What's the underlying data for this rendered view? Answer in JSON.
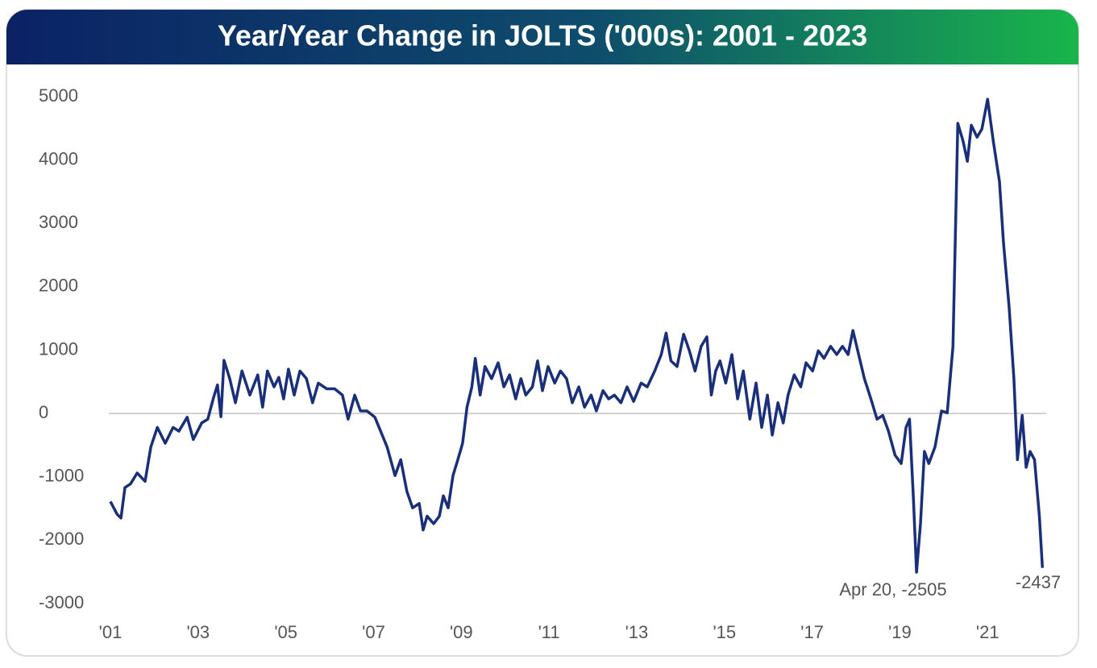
{
  "chart_data": {
    "type": "line",
    "title": "Year/Year Change in JOLTS ('000s): 2001 - 2023",
    "annotations": [
      "Apr 20, -2505",
      "-2437"
    ],
    "xlim": [
      2001,
      2022.3
    ],
    "xticks": [
      {
        "value": 2001,
        "label": "'01"
      },
      {
        "value": 2003,
        "label": "'03"
      },
      {
        "value": 2005,
        "label": "'05"
      },
      {
        "value": 2007,
        "label": "'07"
      },
      {
        "value": 2009,
        "label": "'09"
      },
      {
        "value": 2011,
        "label": "'11"
      },
      {
        "value": 2013,
        "label": "'13"
      },
      {
        "value": 2015,
        "label": "'15"
      },
      {
        "value": 2017,
        "label": "'17"
      },
      {
        "value": 2019,
        "label": "'19"
      },
      {
        "value": 2021,
        "label": "'21"
      }
    ],
    "ylim": [
      -3000,
      5000
    ],
    "yticks": [
      -3000,
      -2000,
      -1000,
      0,
      1000,
      2000,
      3000,
      4000,
      5000
    ],
    "zero_line": true,
    "series": [
      {
        "color": "#1a2f7a",
        "x": [
          2001.0,
          2001.15,
          2001.24,
          2001.33,
          2001.46,
          2001.61,
          2001.79,
          2001.92,
          2002.07,
          2002.25,
          2002.43,
          2002.56,
          2002.75,
          2002.89,
          2003.08,
          2003.22,
          2003.35,
          2003.44,
          2003.52,
          2003.59,
          2003.72,
          2003.85,
          2004.0,
          2004.18,
          2004.36,
          2004.47,
          2004.58,
          2004.73,
          2004.84,
          2004.95,
          2005.06,
          2005.19,
          2005.32,
          2005.47,
          2005.61,
          2005.74,
          2005.93,
          2006.11,
          2006.29,
          2006.42,
          2006.57,
          2006.7,
          2006.85,
          2007.03,
          2007.16,
          2007.31,
          2007.49,
          2007.62,
          2007.76,
          2007.89,
          2008.04,
          2008.13,
          2008.22,
          2008.37,
          2008.5,
          2008.59,
          2008.7,
          2008.81,
          2008.92,
          2009.03,
          2009.13,
          2009.24,
          2009.32,
          2009.43,
          2009.54,
          2009.69,
          2009.84,
          2009.97,
          2010.1,
          2010.24,
          2010.36,
          2010.47,
          2010.62,
          2010.74,
          2010.85,
          2010.98,
          2011.13,
          2011.26,
          2011.4,
          2011.53,
          2011.68,
          2011.81,
          2011.96,
          2012.08,
          2012.23,
          2012.36,
          2012.49,
          2012.64,
          2012.78,
          2012.93,
          2013.1,
          2013.24,
          2013.41,
          2013.56,
          2013.67,
          2013.78,
          2013.92,
          2014.07,
          2014.2,
          2014.33,
          2014.47,
          2014.6,
          2014.7,
          2014.8,
          2014.9,
          2015.03,
          2015.17,
          2015.3,
          2015.43,
          2015.58,
          2015.72,
          2015.85,
          2015.98,
          2016.09,
          2016.22,
          2016.34,
          2016.45,
          2016.59,
          2016.74,
          2016.86,
          2017.01,
          2017.14,
          2017.27,
          2017.42,
          2017.56,
          2017.69,
          2017.82,
          2017.93,
          2018.06,
          2018.19,
          2018.34,
          2018.48,
          2018.61,
          2018.74,
          2018.89,
          2019.03,
          2019.14,
          2019.22,
          2019.31,
          2019.38,
          2019.47,
          2019.56,
          2019.66,
          2019.8,
          2019.95,
          2020.08,
          2020.21,
          2020.32,
          2020.44,
          2020.54,
          2020.63,
          2020.76,
          2020.87,
          2021.0,
          2021.13,
          2021.27,
          2021.36,
          2021.49,
          2021.6,
          2021.68,
          2021.79,
          2021.88,
          2021.97,
          2022.07,
          2022.18,
          2022.25
        ],
        "values": [
          -1390,
          -1590,
          -1650,
          -1170,
          -1110,
          -940,
          -1070,
          -530,
          -220,
          -470,
          -220,
          -280,
          -60,
          -410,
          -150,
          -90,
          250,
          450,
          -50,
          840,
          550,
          170,
          670,
          290,
          610,
          100,
          670,
          420,
          570,
          230,
          700,
          290,
          670,
          550,
          170,
          480,
          390,
          390,
          290,
          -90,
          290,
          40,
          40,
          -60,
          -280,
          -530,
          -980,
          -730,
          -1230,
          -1490,
          -1420,
          -1840,
          -1620,
          -1740,
          -1620,
          -1300,
          -1490,
          -980,
          -730,
          -470,
          100,
          420,
          870,
          290,
          740,
          550,
          800,
          420,
          610,
          230,
          550,
          290,
          420,
          830,
          360,
          740,
          480,
          670,
          550,
          170,
          420,
          100,
          290,
          40,
          360,
          230,
          290,
          170,
          420,
          190,
          480,
          420,
          670,
          930,
          1270,
          830,
          740,
          1250,
          990,
          670,
          1060,
          1210,
          290,
          670,
          830,
          480,
          930,
          230,
          670,
          -90,
          480,
          -220,
          290,
          -340,
          170,
          -150,
          290,
          610,
          420,
          800,
          670,
          990,
          870,
          1060,
          930,
          1060,
          930,
          1310,
          930,
          550,
          230,
          -90,
          -30,
          -280,
          -660,
          -790,
          -220,
          -90,
          -1360,
          -2505,
          -1740,
          -600,
          -790,
          -530,
          40,
          10,
          1060,
          4580,
          4300,
          3980,
          4550,
          4360,
          4490,
          4960,
          4300,
          3660,
          2710,
          1690,
          550,
          -730,
          -30,
          -850,
          -600,
          -730,
          -1620,
          -2437
        ]
      }
    ]
  }
}
